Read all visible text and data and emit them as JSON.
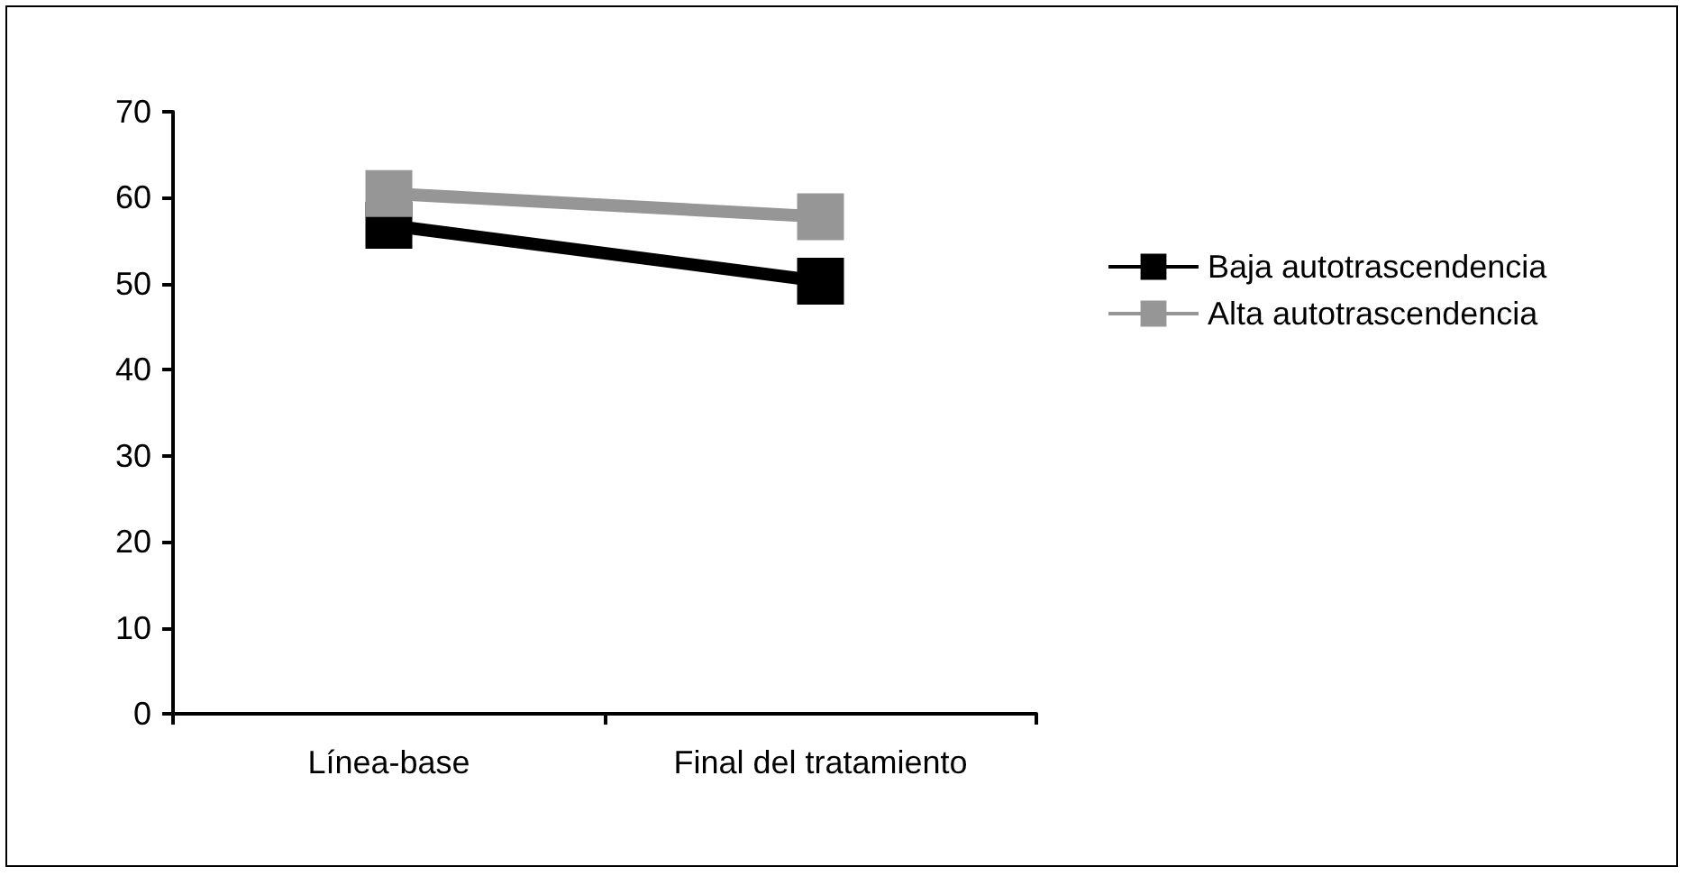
{
  "chart_data": {
    "type": "line",
    "categories": [
      "Línea-base",
      "Final del tratamiento"
    ],
    "series": [
      {
        "name": "Baja autotrascendencia",
        "color": "#000000",
        "values": [
          56.8,
          50.3
        ]
      },
      {
        "name": "Alta autotrascendencia",
        "color": "#969696",
        "values": [
          60.5,
          57.8
        ]
      }
    ],
    "ylim": [
      0,
      70
    ],
    "yticks": [
      0,
      10,
      20,
      30,
      40,
      50,
      60,
      70
    ],
    "grid": false,
    "legend": "right",
    "marker": "square",
    "line_style": "solid"
  }
}
